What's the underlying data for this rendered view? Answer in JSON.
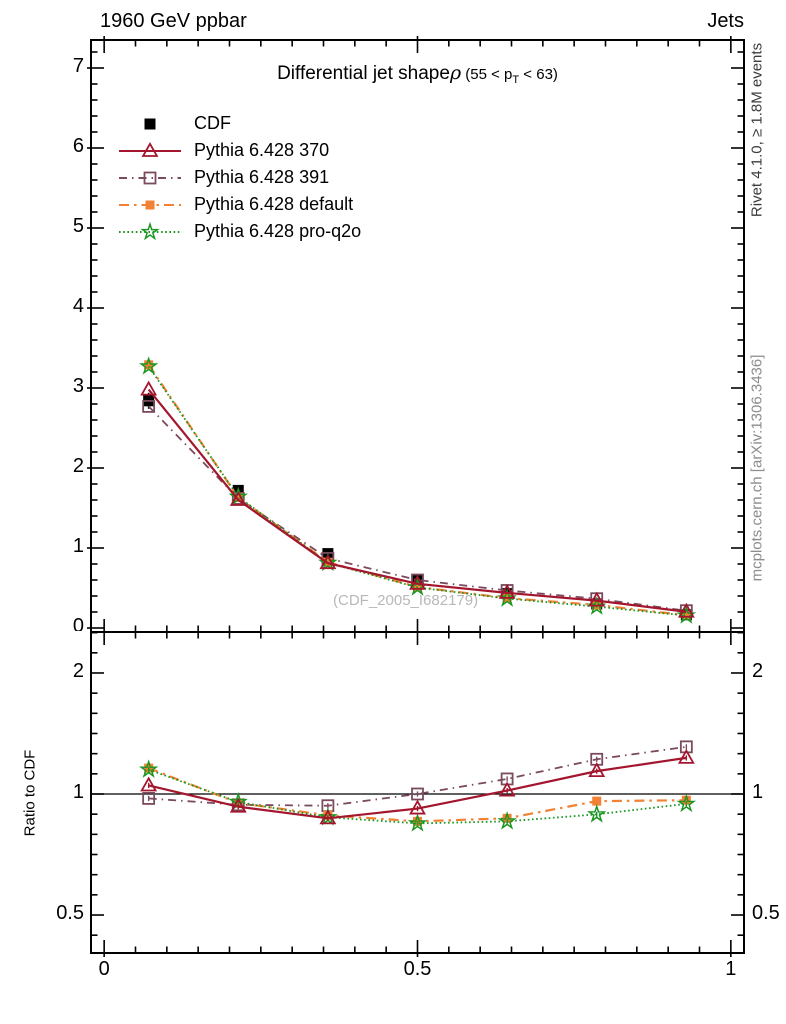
{
  "header": {
    "left": "1960 GeV ppbar",
    "right": "Jets"
  },
  "title": {
    "main": "Differential jet shape",
    "rho": "ρ",
    "cut_pre": " (55 < p",
    "cut_sub": "T",
    "cut_post": " < 63)"
  },
  "ratio_ylabel": "Ratio to CDF",
  "right_margin": {
    "rivet": "Rivet 4.1.0, ≥ 1.8M events",
    "mcplots": "mcplots.cern.ch [arXiv:1306.3436]"
  },
  "watermark": "(CDF_2005_I682179)",
  "colors": {
    "cdf": "#000000",
    "p370": "#a3162e",
    "p391": "#7a4a5e",
    "pdefault": "#f28133",
    "proq2o": "#1a9621",
    "frame": "#000000",
    "watermark": "#b8b8b8",
    "rivet_text": "#3c3c3c",
    "mcplots_text": "#8c8c8c"
  },
  "legend": {
    "entries": [
      {
        "label": "CDF",
        "series": "cdf",
        "marker": "square-filled",
        "line": "none"
      },
      {
        "label": "Pythia 6.428 370",
        "series": "p370",
        "marker": "triangle-open",
        "line": "solid"
      },
      {
        "label": "Pythia 6.428 391",
        "series": "p391",
        "marker": "square-open",
        "line": "dashdot"
      },
      {
        "label": "Pythia 6.428 default",
        "series": "pdefault",
        "marker": "square-filled-sm",
        "line": "longdashdot"
      },
      {
        "label": "Pythia 6.428 pro-q2o",
        "series": "proq2o",
        "marker": "star-open",
        "line": "dotted"
      }
    ]
  },
  "chart_data": {
    "type": "line",
    "x": [
      0.071,
      0.214,
      0.357,
      0.5,
      0.643,
      0.786,
      0.929
    ],
    "xlim": [
      -0.021,
      1.021
    ],
    "x_major_ticks": [
      0,
      0.5,
      1
    ],
    "x_major_labels": [
      "0",
      "0.5",
      "1"
    ],
    "x_minor_step": 0.05,
    "top_panel": {
      "ylim": [
        -0.05,
        7.35
      ],
      "y_major_ticks": [
        0,
        1,
        2,
        3,
        4,
        5,
        6,
        7
      ],
      "y_major_labels": [
        "0",
        "1",
        "2",
        "3",
        "4",
        "5",
        "6",
        "7"
      ],
      "y_minor_step": 0.2,
      "grid": false,
      "series": [
        {
          "name": "CDF",
          "key": "cdf",
          "values": [
            2.84,
            1.72,
            0.93,
            0.6,
            0.43,
            0.3,
            0.165
          ],
          "errors": [
            0.1,
            0.05,
            0.03,
            0.02,
            0.015,
            0.012,
            0.01
          ]
        },
        {
          "name": "Pythia 6.428 391",
          "key": "p391",
          "values": [
            2.77,
            1.62,
            0.87,
            0.6,
            0.469,
            0.366,
            0.216
          ]
        },
        {
          "name": "Pythia 6.428 default",
          "key": "pdefault",
          "values": [
            3.29,
            1.63,
            0.823,
            0.513,
            0.374,
            0.288,
            0.159
          ]
        },
        {
          "name": "Pythia 6.428 pro-q2o",
          "key": "proq2o",
          "values": [
            3.27,
            1.64,
            0.814,
            0.507,
            0.368,
            0.267,
            0.156
          ]
        },
        {
          "name": "Pythia 6.428 370",
          "key": "p370",
          "values": [
            2.98,
            1.6,
            0.81,
            0.552,
            0.439,
            0.342,
            0.203
          ]
        }
      ]
    },
    "ratio_panel": {
      "scale": "log",
      "ylim": [
        0.402,
        2.53
      ],
      "y_major_ticks": [
        0.5,
        1,
        2
      ],
      "y_major_labels": [
        "0.5",
        "1",
        "2"
      ],
      "reference_line": 1.0,
      "series": [
        {
          "name": "Pythia 6.428 391",
          "key": "p391",
          "ratios": [
            0.975,
            0.94,
            0.935,
            1.0,
            1.09,
            1.22,
            1.31
          ]
        },
        {
          "name": "Pythia 6.428 default",
          "key": "pdefault",
          "ratios": [
            1.16,
            0.95,
            0.885,
            0.855,
            0.87,
            0.96,
            0.965
          ]
        },
        {
          "name": "Pythia 6.428 pro-q2o",
          "key": "proq2o",
          "ratios": [
            1.15,
            0.955,
            0.875,
            0.845,
            0.855,
            0.89,
            0.945
          ]
        },
        {
          "name": "Pythia 6.428 370",
          "key": "p370",
          "ratios": [
            1.05,
            0.93,
            0.87,
            0.92,
            1.02,
            1.14,
            1.23
          ]
        }
      ]
    }
  }
}
